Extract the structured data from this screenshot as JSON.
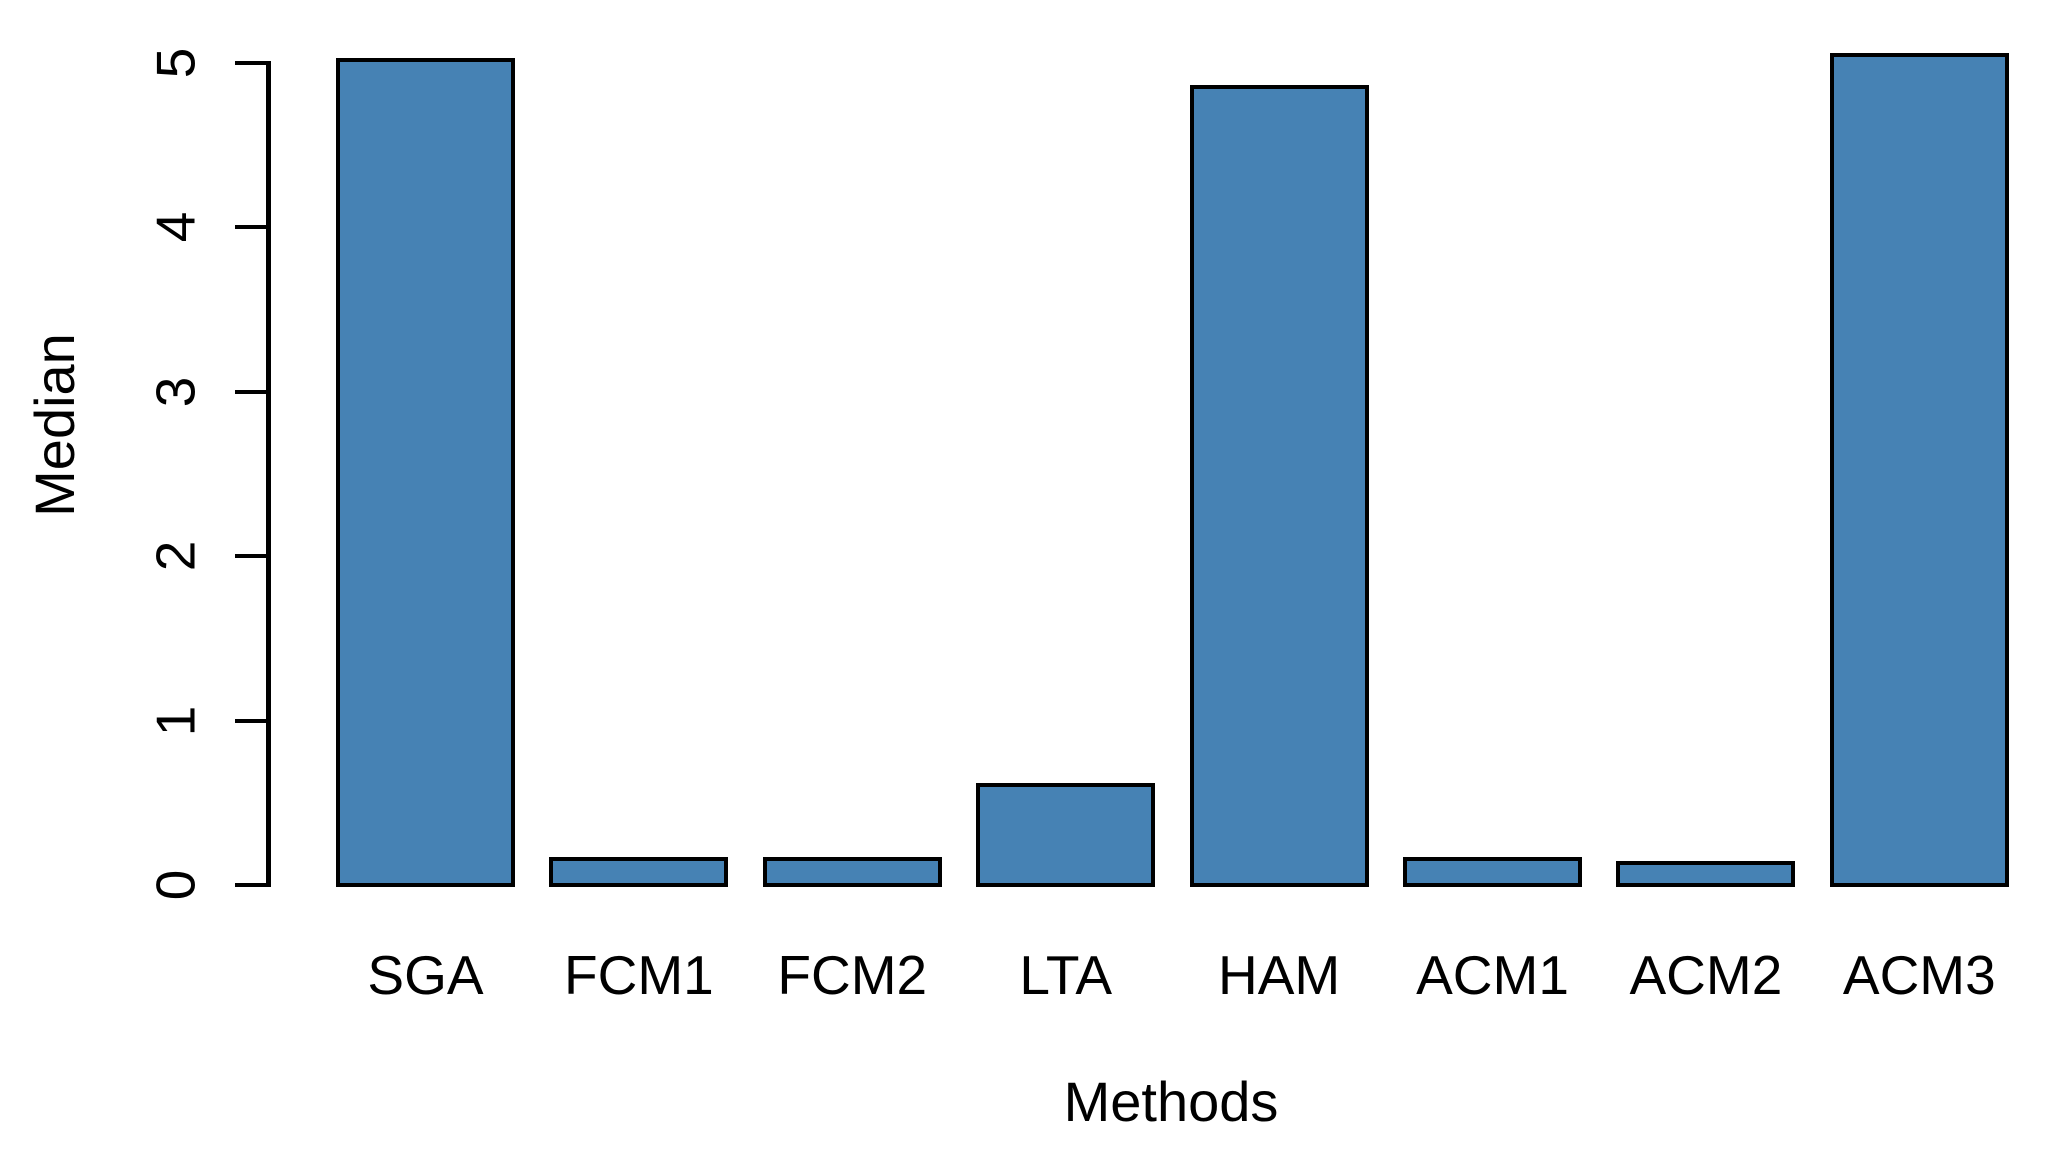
{
  "figure": {
    "background_color": "#ffffff",
    "text_color": "#000000"
  },
  "chart_data": {
    "type": "bar",
    "title": "",
    "xlabel": "Methods",
    "ylabel": "Median",
    "categories": [
      "SGA",
      "FCM1",
      "FCM2",
      "LTA",
      "HAM",
      "ACM1",
      "ACM2",
      "ACM3"
    ],
    "values": [
      5.04,
      0.18,
      0.18,
      0.63,
      4.88,
      0.18,
      0.16,
      5.07
    ],
    "yticks": [
      0,
      1,
      2,
      3,
      4,
      5
    ],
    "ylim": [
      0,
      5.2
    ],
    "grid": false,
    "legend": null,
    "bar_color": "#4682B4",
    "bar_border_color": "#000000",
    "axis_color": "#000000"
  }
}
